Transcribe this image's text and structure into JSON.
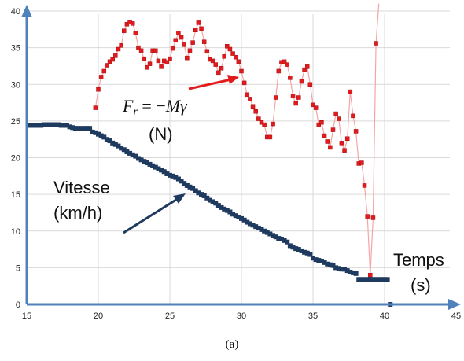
{
  "chart_data": {
    "type": "scatter",
    "xlim": [
      15,
      45
    ],
    "ylim": [
      0,
      40
    ],
    "x_ticks": [
      "15",
      "20",
      "25",
      "30",
      "35",
      "40",
      "45"
    ],
    "y_ticks": [
      "0",
      "5",
      "10",
      "15",
      "20",
      "25",
      "30",
      "35",
      "40"
    ],
    "grid": true,
    "colors": {
      "axis": "#4f81bd",
      "grid": "#d9d9d9",
      "force": "#e31a1c",
      "force_line": "#f4a6a6",
      "speed": "#1f3a5f",
      "arrow_speed": "#1f3a5f",
      "arrow_force": "#e31a1c"
    },
    "series": [
      {
        "name_formula": "F_r = −Mγ",
        "points": [
          [
            19.8,
            26.8
          ],
          [
            20.0,
            29.3
          ],
          [
            20.2,
            31.0
          ],
          [
            20.4,
            31.8
          ],
          [
            20.6,
            32.6
          ],
          [
            20.8,
            33.1
          ],
          [
            21.0,
            33.4
          ],
          [
            21.2,
            33.9
          ],
          [
            21.4,
            34.8
          ],
          [
            21.6,
            35.3
          ],
          [
            21.8,
            37.3
          ],
          [
            22.0,
            38.2
          ],
          [
            22.2,
            38.5
          ],
          [
            22.4,
            38.3
          ],
          [
            22.6,
            37.0
          ],
          [
            22.8,
            35.0
          ],
          [
            23.0,
            34.6
          ],
          [
            23.2,
            33.5
          ],
          [
            23.4,
            32.3
          ],
          [
            23.6,
            32.8
          ],
          [
            23.8,
            34.6
          ],
          [
            24.0,
            34.6
          ],
          [
            24.2,
            33.2
          ],
          [
            24.4,
            32.4
          ],
          [
            24.6,
            33.2
          ],
          [
            24.8,
            33.0
          ],
          [
            25.0,
            33.5
          ],
          [
            25.2,
            34.9
          ],
          [
            25.4,
            36.0
          ],
          [
            25.6,
            37.0
          ],
          [
            25.8,
            36.4
          ],
          [
            26.0,
            35.4
          ],
          [
            26.2,
            33.6
          ],
          [
            26.4,
            34.6
          ],
          [
            26.6,
            35.7
          ],
          [
            26.8,
            37.4
          ],
          [
            27.0,
            38.4
          ],
          [
            27.2,
            37.6
          ],
          [
            27.4,
            35.8
          ],
          [
            27.6,
            34.5
          ],
          [
            27.8,
            33.4
          ],
          [
            28.0,
            33.2
          ],
          [
            28.2,
            32.7
          ],
          [
            28.4,
            31.6
          ],
          [
            28.6,
            32.2
          ],
          [
            28.8,
            33.8
          ],
          [
            29.0,
            35.2
          ],
          [
            29.2,
            34.8
          ],
          [
            29.4,
            34.2
          ],
          [
            29.6,
            33.7
          ],
          [
            29.8,
            33.1
          ],
          [
            30.0,
            31.8
          ],
          [
            30.2,
            30.2
          ],
          [
            30.4,
            28.6
          ],
          [
            30.6,
            28.0
          ],
          [
            30.8,
            27.0
          ],
          [
            31.0,
            26.3
          ],
          [
            31.2,
            25.3
          ],
          [
            31.4,
            24.8
          ],
          [
            31.6,
            24.5
          ],
          [
            31.8,
            22.8
          ],
          [
            32.0,
            22.8
          ],
          [
            32.2,
            24.6
          ],
          [
            32.4,
            28.2
          ],
          [
            32.6,
            31.8
          ],
          [
            32.8,
            33.0
          ],
          [
            33.0,
            33.1
          ],
          [
            33.2,
            32.7
          ],
          [
            33.4,
            30.9
          ],
          [
            33.6,
            28.4
          ],
          [
            33.8,
            27.4
          ],
          [
            34.0,
            28.2
          ],
          [
            34.2,
            30.4
          ],
          [
            34.4,
            32.0
          ],
          [
            34.6,
            32.4
          ],
          [
            34.8,
            30.0
          ],
          [
            35.0,
            27.2
          ],
          [
            35.2,
            26.8
          ],
          [
            35.4,
            24.5
          ],
          [
            35.6,
            24.8
          ],
          [
            35.8,
            23.0
          ],
          [
            36.0,
            22.2
          ],
          [
            36.2,
            21.4
          ],
          [
            36.4,
            23.8
          ],
          [
            36.6,
            26.0
          ],
          [
            36.8,
            25.3
          ],
          [
            37.0,
            22.0
          ],
          [
            37.2,
            21.0
          ],
          [
            37.4,
            22.6
          ],
          [
            37.6,
            29.0
          ],
          [
            37.8,
            25.7
          ],
          [
            38.0,
            23.6
          ],
          [
            38.2,
            19.2
          ],
          [
            38.4,
            19.3
          ],
          [
            38.6,
            16.2
          ],
          [
            38.8,
            12.0
          ],
          [
            39.0,
            4.0
          ],
          [
            39.2,
            11.8
          ],
          [
            39.4,
            35.6
          ],
          [
            39.6,
            41.0
          ]
        ]
      },
      {
        "name": "Vitesse",
        "points": [
          [
            15.2,
            24.4
          ],
          [
            15.4,
            24.4
          ],
          [
            15.6,
            24.4
          ],
          [
            15.8,
            24.4
          ],
          [
            16.0,
            24.4
          ],
          [
            16.2,
            24.5
          ],
          [
            16.4,
            24.5
          ],
          [
            16.6,
            24.5
          ],
          [
            16.8,
            24.5
          ],
          [
            17.0,
            24.5
          ],
          [
            17.2,
            24.5
          ],
          [
            17.4,
            24.4
          ],
          [
            17.6,
            24.4
          ],
          [
            17.8,
            24.4
          ],
          [
            18.0,
            24.2
          ],
          [
            18.2,
            24.1
          ],
          [
            18.4,
            24.0
          ],
          [
            18.6,
            24.0
          ],
          [
            18.8,
            24.0
          ],
          [
            19.0,
            24.0
          ],
          [
            19.2,
            24.0
          ],
          [
            19.4,
            24.0
          ],
          [
            19.6,
            23.5
          ],
          [
            19.8,
            23.4
          ],
          [
            20.0,
            23.2
          ],
          [
            20.2,
            23.0
          ],
          [
            20.4,
            22.8
          ],
          [
            20.6,
            22.5
          ],
          [
            20.8,
            22.3
          ],
          [
            21.0,
            22.0
          ],
          [
            21.2,
            21.8
          ],
          [
            21.4,
            21.6
          ],
          [
            21.6,
            21.3
          ],
          [
            21.8,
            21.1
          ],
          [
            22.0,
            20.8
          ],
          [
            22.2,
            20.6
          ],
          [
            22.4,
            20.4
          ],
          [
            22.6,
            20.2
          ],
          [
            22.8,
            19.9
          ],
          [
            23.0,
            19.7
          ],
          [
            23.2,
            19.5
          ],
          [
            23.4,
            19.3
          ],
          [
            23.6,
            19.1
          ],
          [
            23.8,
            18.9
          ],
          [
            24.0,
            18.7
          ],
          [
            24.2,
            18.5
          ],
          [
            24.4,
            18.3
          ],
          [
            24.6,
            18.1
          ],
          [
            24.8,
            17.8
          ],
          [
            25.0,
            17.6
          ],
          [
            25.2,
            17.5
          ],
          [
            25.4,
            17.3
          ],
          [
            25.6,
            17.1
          ],
          [
            25.8,
            16.8
          ],
          [
            26.0,
            16.5
          ],
          [
            26.2,
            16.2
          ],
          [
            26.4,
            16.0
          ],
          [
            26.6,
            15.8
          ],
          [
            26.8,
            15.5
          ],
          [
            27.0,
            15.2
          ],
          [
            27.2,
            15.0
          ],
          [
            27.4,
            14.8
          ],
          [
            27.6,
            14.5
          ],
          [
            27.8,
            14.2
          ],
          [
            28.0,
            14.0
          ],
          [
            28.2,
            13.8
          ],
          [
            28.4,
            13.5
          ],
          [
            28.6,
            13.2
          ],
          [
            28.8,
            13.0
          ],
          [
            29.0,
            12.8
          ],
          [
            29.2,
            12.6
          ],
          [
            29.4,
            12.3
          ],
          [
            29.6,
            12.1
          ],
          [
            29.8,
            11.9
          ],
          [
            30.0,
            11.7
          ],
          [
            30.2,
            11.5
          ],
          [
            30.4,
            11.2
          ],
          [
            30.6,
            11.0
          ],
          [
            30.8,
            10.8
          ],
          [
            31.0,
            10.6
          ],
          [
            31.2,
            10.4
          ],
          [
            31.4,
            10.2
          ],
          [
            31.6,
            10.0
          ],
          [
            31.8,
            9.8
          ],
          [
            32.0,
            9.6
          ],
          [
            32.2,
            9.4
          ],
          [
            32.4,
            9.2
          ],
          [
            32.6,
            9.0
          ],
          [
            32.8,
            8.9
          ],
          [
            33.0,
            8.7
          ],
          [
            33.2,
            8.5
          ],
          [
            33.4,
            8.0
          ],
          [
            33.6,
            7.8
          ],
          [
            33.8,
            7.6
          ],
          [
            34.0,
            7.5
          ],
          [
            34.2,
            7.3
          ],
          [
            34.4,
            7.1
          ],
          [
            34.6,
            7.0
          ],
          [
            34.8,
            6.8
          ],
          [
            35.0,
            6.3
          ],
          [
            35.2,
            6.1
          ],
          [
            35.4,
            6.0
          ],
          [
            35.6,
            5.9
          ],
          [
            35.8,
            5.7
          ],
          [
            36.0,
            5.5
          ],
          [
            36.2,
            5.4
          ],
          [
            36.4,
            5.3
          ],
          [
            36.6,
            5.0
          ],
          [
            36.8,
            4.9
          ],
          [
            37.0,
            4.8
          ],
          [
            37.2,
            4.8
          ],
          [
            37.4,
            4.6
          ],
          [
            37.6,
            4.4
          ],
          [
            37.8,
            4.3
          ],
          [
            38.0,
            4.2
          ],
          [
            38.2,
            3.4
          ],
          [
            38.4,
            3.4
          ],
          [
            38.6,
            3.4
          ],
          [
            38.8,
            3.4
          ],
          [
            39.0,
            3.4
          ],
          [
            39.2,
            3.4
          ],
          [
            39.4,
            3.4
          ],
          [
            39.6,
            3.4
          ],
          [
            39.8,
            3.4
          ],
          [
            40.0,
            3.4
          ],
          [
            40.2,
            3.4
          ],
          [
            40.4,
            0.0
          ]
        ]
      }
    ]
  },
  "annotations": {
    "force_formula": "F_r = −Mγ",
    "force_unit": "(N)",
    "speed_label": "Vitesse",
    "speed_unit": "(km/h)",
    "x_label": "Temps",
    "x_unit": "(s)"
  },
  "caption": "(a)"
}
